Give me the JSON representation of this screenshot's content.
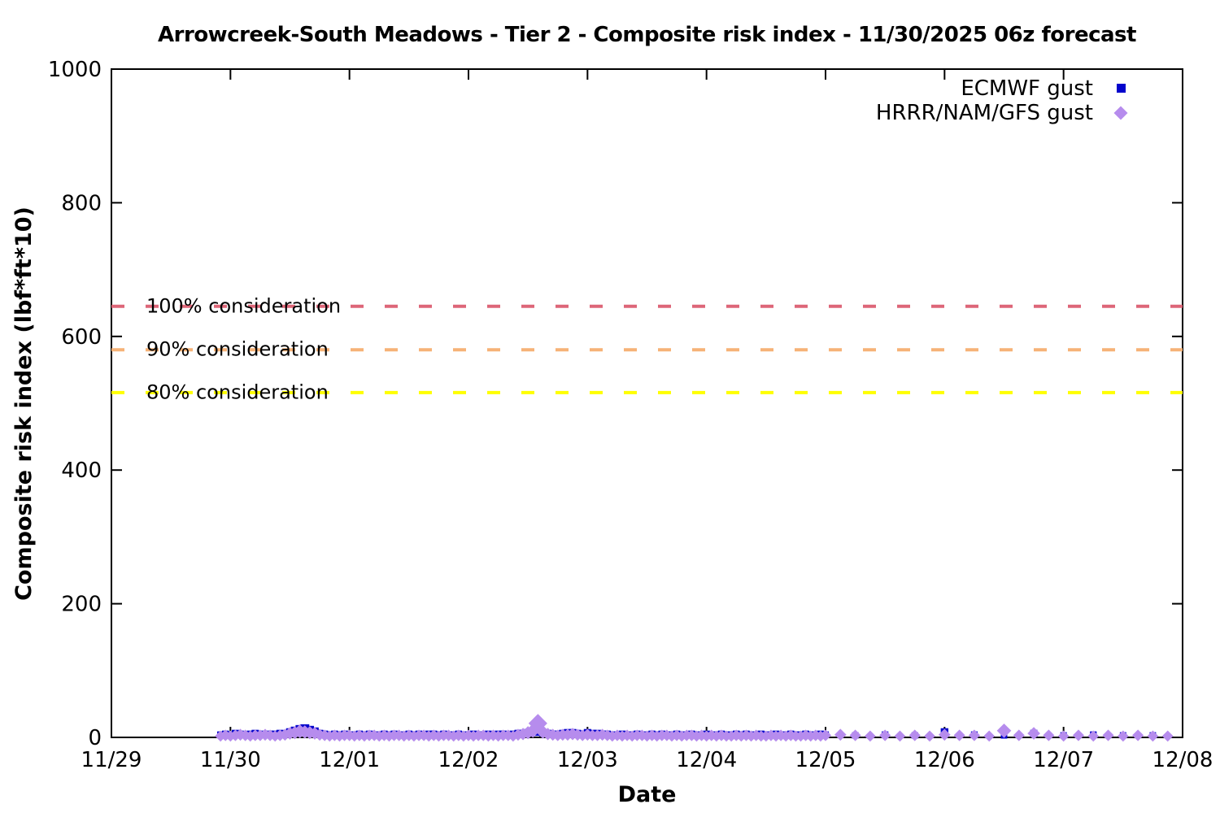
{
  "chart_data": {
    "type": "scatter",
    "title": "Arrowcreek-South Meadows - Tier 2 - Composite risk index - 11/30/2025 06z forecast",
    "xlabel": "Date",
    "ylabel": "Composite risk index (lbf*ft*10)",
    "x_tick_labels": [
      "11/29",
      "11/30",
      "12/01",
      "12/02",
      "12/03",
      "12/04",
      "12/05",
      "12/06",
      "12/07",
      "12/08"
    ],
    "x_axis_span_hours": 216,
    "x_time_origin": "11/29 00:00",
    "y_ticks": [
      0,
      200,
      400,
      600,
      800,
      1000
    ],
    "ylim": [
      0,
      1000
    ],
    "grid": false,
    "legend_position": "top-right-inside",
    "thresholds": [
      {
        "label": "100% consideration",
        "value": 645,
        "color": "#dd6678"
      },
      {
        "label": "90% consideration",
        "value": 580,
        "color": "#f6b277"
      },
      {
        "label": "80% consideration",
        "value": 516,
        "color": "#ffff00"
      }
    ],
    "series": [
      {
        "name": "ECMWF gust",
        "marker": "square",
        "color": "#0404cc",
        "segments": [
          {
            "start_hour": 22,
            "step_hours": 1,
            "values": [
              4,
              5,
              4,
              6,
              5,
              4,
              5,
              6,
              5,
              4,
              5,
              5,
              6,
              5,
              8,
              10,
              12,
              13,
              11,
              9,
              6,
              5,
              4,
              5,
              4,
              5,
              4,
              4,
              5,
              4,
              5,
              4,
              4,
              5,
              4,
              5,
              4,
              4,
              5,
              4,
              5,
              4,
              5,
              5,
              4,
              5,
              4,
              4,
              5,
              4,
              4,
              5,
              4,
              4,
              5,
              4,
              5,
              5,
              4,
              5,
              6,
              6,
              7,
              8,
              8,
              7,
              6,
              5,
              5,
              6,
              7,
              7,
              6,
              5,
              7,
              6,
              6,
              5,
              5,
              4,
              4,
              5,
              4,
              4,
              5,
              4,
              4,
              5,
              4,
              5,
              4,
              4,
              5,
              4,
              4,
              5,
              4,
              4,
              5,
              4,
              4,
              5,
              4,
              4,
              5,
              4,
              5,
              4,
              4,
              5,
              4,
              4,
              5,
              4,
              4,
              5,
              4,
              4,
              5,
              4,
              4,
              5,
              4
            ]
          },
          {
            "start_hour": 150,
            "step_hours": 6,
            "values": [
              3,
              4,
              3,
              8,
              4,
              3,
              6,
              3,
              4,
              3,
              3
            ]
          }
        ]
      },
      {
        "name": "HRRR/NAM/GFS gust",
        "marker": "diamond",
        "color": "#b68ced",
        "segments": [
          {
            "start_hour": 22,
            "step_hours": 1,
            "values": [
              2,
              3,
              2,
              3,
              4,
              3,
              2,
              3,
              3,
              4,
              3,
              2,
              3,
              4,
              6,
              7,
              9,
              8,
              7,
              6,
              4,
              3,
              2,
              3,
              2,
              3,
              3,
              2,
              3,
              2,
              3,
              3,
              2,
              3,
              2,
              3,
              3,
              2,
              3,
              2,
              3,
              3,
              2,
              3,
              2,
              3,
              3,
              2,
              3,
              2,
              3,
              2,
              3,
              3,
              2,
              3,
              2,
              3,
              3,
              2,
              4,
              5,
              7,
              10,
              21,
              8,
              5,
              4,
              3,
              4,
              4,
              5,
              4,
              3,
              4,
              3,
              3,
              4,
              3,
              2,
              3,
              2,
              3,
              2,
              3,
              3,
              2,
              3,
              2,
              3,
              3,
              2,
              3,
              2,
              3,
              3,
              2,
              3,
              2,
              3,
              2,
              3,
              2,
              2,
              3,
              2,
              3,
              2,
              3,
              2,
              2,
              3,
              2,
              3,
              2,
              3,
              2,
              2,
              3,
              2,
              3,
              2,
              3
            ]
          },
          {
            "start_hour": 147,
            "step_hours": 3,
            "values": [
              4,
              3,
              2,
              3,
              2,
              3,
              2,
              4,
              3,
              3,
              2,
              10,
              3,
              6,
              3,
              2,
              3,
              2,
              3,
              2,
              3,
              2,
              2
            ]
          }
        ]
      }
    ]
  }
}
